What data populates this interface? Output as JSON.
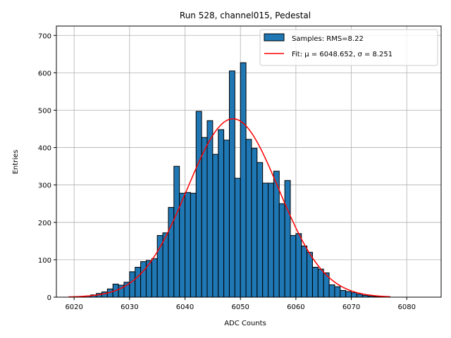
{
  "chart_data": {
    "type": "histogram",
    "title": "Run 528, channel015, Pedestal",
    "xlabel": "ADC Counts",
    "ylabel": "Entries",
    "xlim": [
      6016.8,
      6086.2
    ],
    "ylim": [
      0,
      725
    ],
    "xticks": [
      6020,
      6030,
      6040,
      6050,
      6060,
      6070,
      6080
    ],
    "yticks": [
      0,
      100,
      200,
      300,
      400,
      500,
      600,
      700
    ],
    "grid": true,
    "bar_color": "#1f77b4",
    "fit_color": "#ff0000",
    "bin_start": 6020,
    "bin_width": 1,
    "values": [
      1,
      2,
      3,
      6,
      10,
      14,
      22,
      35,
      32,
      40,
      68,
      80,
      95,
      98,
      103,
      165,
      172,
      240,
      350,
      278,
      280,
      278,
      497,
      427,
      472,
      382,
      448,
      420,
      605,
      318,
      627,
      422,
      398,
      360,
      305,
      305,
      337,
      250,
      312,
      165,
      170,
      137,
      120,
      80,
      75,
      65,
      33,
      28,
      18,
      15,
      12,
      8,
      5,
      3,
      2,
      1,
      1
    ],
    "legend": {
      "position": "upper right",
      "entries": [
        "Samples: RMS=8.22",
        "Fit: μ = 6048.652, σ = 8.251"
      ]
    },
    "fit": {
      "label": "Fit: μ = 6048.652, σ = 8.251",
      "mu": 6048.652,
      "sigma": 8.251,
      "amplitude": 477,
      "x_range": [
        6019,
        6077
      ]
    }
  }
}
